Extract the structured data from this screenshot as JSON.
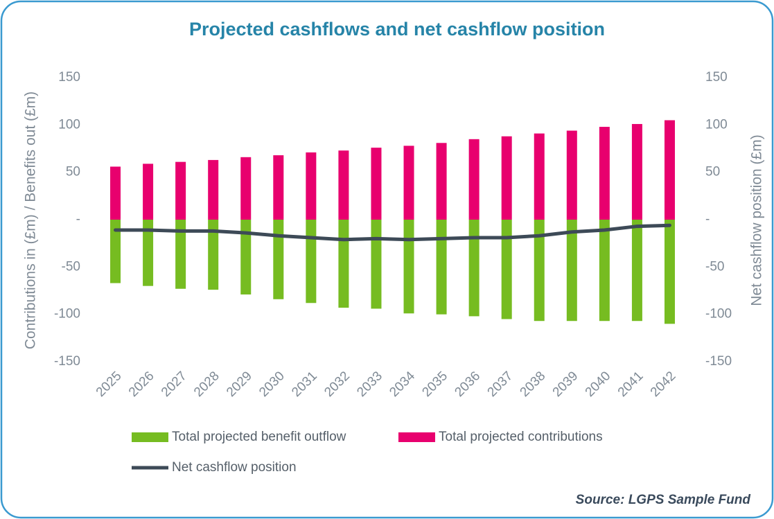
{
  "chart_data": {
    "type": "bar",
    "title": "Projected cashflows and net cashflow position",
    "y_label": "Contributions in (£m) / Benefits out (£m)",
    "y2_label": "Net cashflow position (£m)",
    "source": "Source: LGPS Sample Fund",
    "categories": [
      "2025",
      "2026",
      "2027",
      "2028",
      "2029",
      "2030",
      "2031",
      "2032",
      "2033",
      "2034",
      "2035",
      "2036",
      "2037",
      "2038",
      "2039",
      "2040",
      "2041",
      "2042"
    ],
    "series": [
      {
        "name": "Total projected benefit outflow",
        "type": "bar",
        "color": "#76bc21",
        "values": [
          -67,
          -70,
          -73,
          -74,
          -79,
          -84,
          -88,
          -93,
          -94,
          -99,
          -100,
          -102,
          -105,
          -107,
          -107,
          -107,
          -107,
          -110
        ]
      },
      {
        "name": "Total projected contributions",
        "type": "bar",
        "color": "#e8006e",
        "values": [
          56,
          59,
          61,
          63,
          66,
          68,
          71,
          73,
          76,
          78,
          81,
          85,
          88,
          91,
          94,
          98,
          101,
          105
        ]
      },
      {
        "name": "Net cashflow position",
        "type": "line",
        "axis": "y2",
        "color": "#3d4a57",
        "values": [
          -11,
          -11,
          -12,
          -12,
          -14,
          -17,
          -19,
          -21,
          -20,
          -21,
          -20,
          -19,
          -19,
          -17,
          -13,
          -11,
          -7,
          -6
        ]
      }
    ],
    "ylim": [
      -150,
      150
    ],
    "yticks": [
      -150,
      -100,
      -50,
      {
        "value": 0,
        "label": "-"
      },
      50,
      100,
      150
    ],
    "y2lim": [
      -150,
      150
    ],
    "y2ticks": [
      -150,
      -100,
      -50,
      {
        "value": 0,
        "label": "-"
      },
      50,
      100,
      150
    ],
    "grid": false,
    "legend": "bottom"
  }
}
